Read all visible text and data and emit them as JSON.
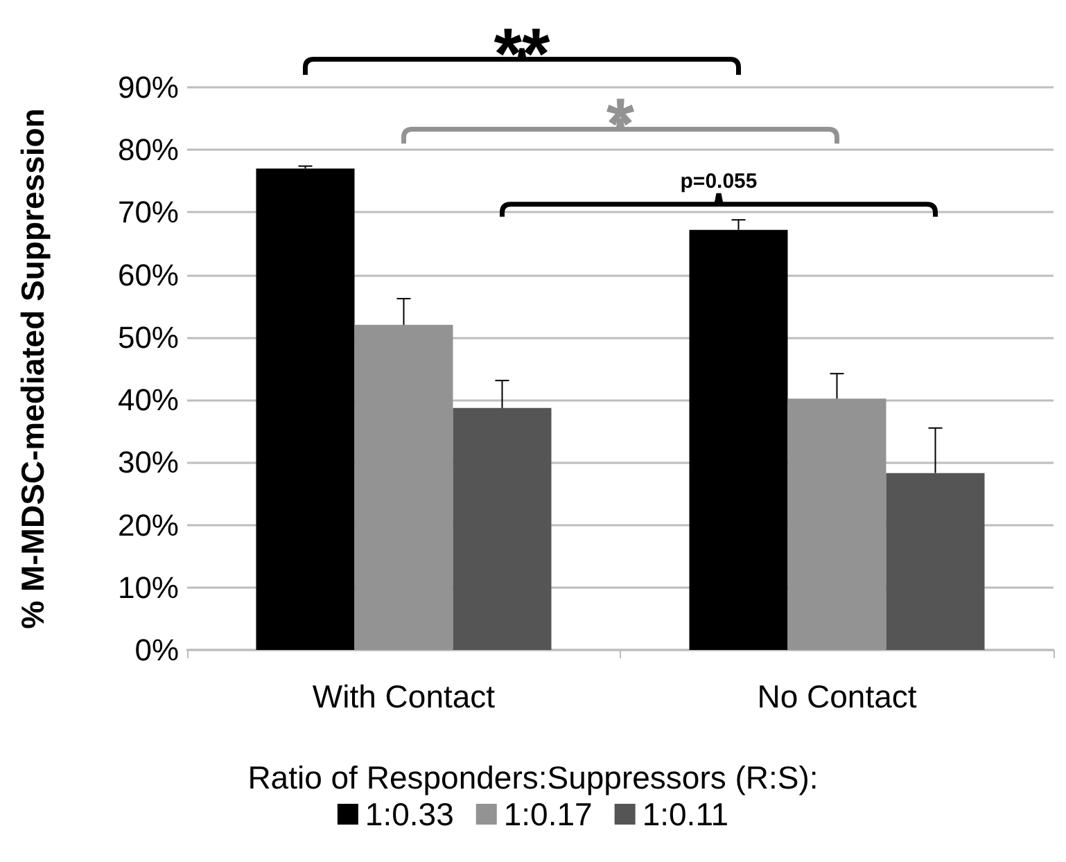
{
  "chart_data": {
    "type": "bar",
    "ylabel": "% M-MDSC-mediated Suppression",
    "legend_title": "Ratio of Responders:Suppressors (R:S):",
    "categories": [
      "With Contact",
      "No Contact"
    ],
    "series": [
      {
        "name": "1:0.33",
        "color": "#000000",
        "values": [
          77,
          67.2
        ],
        "errors": [
          [
            77,
            77.4
          ],
          [
            67.2,
            68.8
          ]
        ]
      },
      {
        "name": "1:0.17",
        "color": "#939393",
        "values": [
          52,
          40.2
        ],
        "errors": [
          [
            52,
            56.2
          ],
          [
            40.2,
            44.2
          ]
        ]
      },
      {
        "name": "1:0.11",
        "color": "#555555",
        "values": [
          38.7,
          28.3
        ],
        "errors": [
          [
            38.7,
            43.1
          ],
          [
            28.3,
            35.5
          ]
        ]
      }
    ],
    "annotations": [
      "**",
      "*",
      "p=0.055"
    ],
    "ylim": [
      0,
      90
    ],
    "yticks": [
      {
        "value": 0,
        "label": "0%"
      },
      {
        "value": 10,
        "label": "10%"
      },
      {
        "value": 20,
        "label": "20%"
      },
      {
        "value": 30,
        "label": "30%"
      },
      {
        "value": 40,
        "label": "40%"
      },
      {
        "value": 50,
        "label": "50%"
      },
      {
        "value": 60,
        "label": "60%"
      },
      {
        "value": 70,
        "label": "70%"
      },
      {
        "value": 80,
        "label": "80%"
      },
      {
        "value": 90,
        "label": "90%"
      }
    ],
    "grid": "y",
    "legend": "bottom"
  }
}
